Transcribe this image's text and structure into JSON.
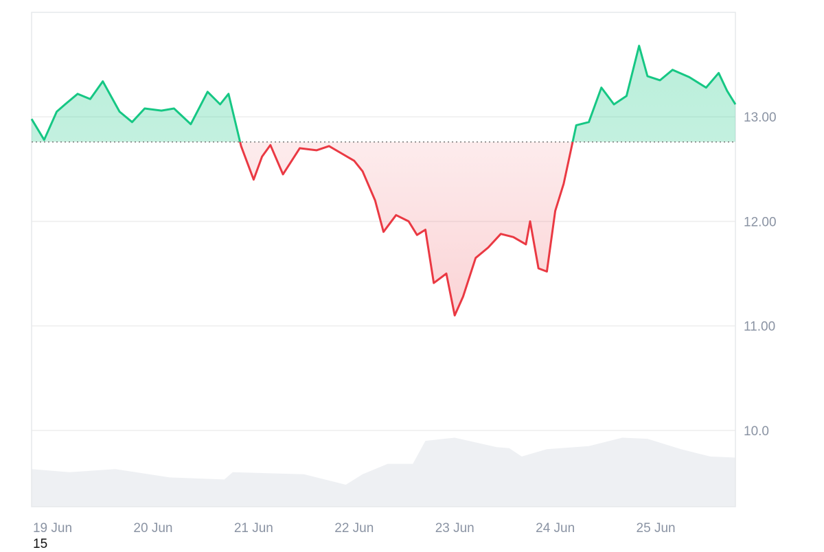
{
  "chart_data": {
    "type": "line",
    "title": "",
    "xlabel": "",
    "ylabel": "",
    "x_ticks": [
      "19 Jun",
      "20 Jun",
      "21 Jun",
      "22 Jun",
      "23 Jun",
      "24 Jun",
      "25 Jun"
    ],
    "y_ticks": [
      "10.0",
      "11.00",
      "12.00",
      "13.00"
    ],
    "y_tick_values": [
      10,
      11,
      12,
      13
    ],
    "ylim": [
      9.27,
      14.0
    ],
    "xlim": [
      "2024-06-18T19:00",
      "2024-06-25T19:00"
    ],
    "baseline": 12.76,
    "grid": true,
    "colors": {
      "above": "#16c784",
      "below": "#ea3943",
      "volume": "#eef0f3",
      "grid": "#eeeeee",
      "axis": "#e6e8eb"
    },
    "price_series": {
      "x": [
        "2024-06-18T19:00",
        "2024-06-18T22:00",
        "2024-06-19T01:00",
        "2024-06-19T03:00",
        "2024-06-19T06:00",
        "2024-06-19T09:00",
        "2024-06-19T12:00",
        "2024-06-19T16:00",
        "2024-06-19T19:00",
        "2024-06-19T22:00",
        "2024-06-20T02:00",
        "2024-06-20T05:00",
        "2024-06-20T09:00",
        "2024-06-20T13:00",
        "2024-06-20T16:00",
        "2024-06-20T18:00",
        "2024-06-20T21:00",
        "2024-06-21T00:00",
        "2024-06-21T02:00",
        "2024-06-21T04:00",
        "2024-06-21T07:00",
        "2024-06-21T11:00",
        "2024-06-21T15:00",
        "2024-06-21T18:00",
        "2024-06-21T21:00",
        "2024-06-22T00:00",
        "2024-06-22T02:00",
        "2024-06-22T05:00",
        "2024-06-22T07:00",
        "2024-06-22T10:00",
        "2024-06-22T13:00",
        "2024-06-22T15:00",
        "2024-06-22T17:00",
        "2024-06-22T19:00",
        "2024-06-22T22:00",
        "2024-06-23T00:00",
        "2024-06-23T02:00",
        "2024-06-23T05:00",
        "2024-06-23T08:00",
        "2024-06-23T11:00",
        "2024-06-23T14:00",
        "2024-06-23T17:00",
        "2024-06-23T18:00",
        "2024-06-23T20:00",
        "2024-06-23T22:00",
        "2024-06-24T00:00",
        "2024-06-24T02:00",
        "2024-06-24T05:00",
        "2024-06-24T08:00",
        "2024-06-24T11:00",
        "2024-06-24T14:00",
        "2024-06-24T17:00",
        "2024-06-24T20:00",
        "2024-06-24T22:00",
        "2024-06-25T01:00",
        "2024-06-25T04:00",
        "2024-06-25T08:00",
        "2024-06-25T12:00",
        "2024-06-25T15:00",
        "2024-06-25T17:00",
        "2024-06-25T19:00"
      ],
      "y": [
        12.98,
        12.78,
        13.05,
        13.12,
        13.22,
        13.17,
        13.34,
        13.05,
        12.95,
        13.08,
        13.06,
        13.08,
        12.93,
        13.24,
        13.12,
        13.22,
        12.72,
        12.4,
        12.62,
        12.73,
        12.45,
        12.7,
        12.68,
        12.72,
        12.65,
        12.58,
        12.48,
        12.2,
        11.9,
        12.06,
        12.0,
        11.87,
        11.92,
        11.41,
        11.5,
        11.1,
        11.28,
        11.65,
        11.75,
        11.88,
        11.85,
        11.78,
        12.0,
        11.55,
        11.52,
        12.1,
        12.36,
        12.92,
        12.95,
        13.28,
        13.12,
        13.2,
        13.68,
        13.39,
        13.35,
        13.45,
        13.38,
        13.28,
        13.42,
        13.25,
        13.12
      ]
    },
    "volume_series": {
      "x": [
        "2024-06-18T19:00",
        "2024-06-19T04:00",
        "2024-06-19T15:00",
        "2024-06-20T04:00",
        "2024-06-20T17:00",
        "2024-06-20T19:00",
        "2024-06-21T12:00",
        "2024-06-21T22:00",
        "2024-06-22T02:00",
        "2024-06-22T08:00",
        "2024-06-22T14:00",
        "2024-06-22T17:00",
        "2024-06-23T00:00",
        "2024-06-23T10:00",
        "2024-06-23T13:00",
        "2024-06-23T16:00",
        "2024-06-23T22:00",
        "2024-06-24T08:00",
        "2024-06-24T16:00",
        "2024-06-24T22:00",
        "2024-06-25T06:00",
        "2024-06-25T13:00",
        "2024-06-25T19:00"
      ],
      "y": [
        9.63,
        9.6,
        9.63,
        9.55,
        9.53,
        9.6,
        9.58,
        9.48,
        9.58,
        9.68,
        9.68,
        9.9,
        9.93,
        9.84,
        9.83,
        9.75,
        9.82,
        9.85,
        9.93,
        9.92,
        9.82,
        9.75,
        9.74
      ]
    }
  },
  "corner_text": "15"
}
